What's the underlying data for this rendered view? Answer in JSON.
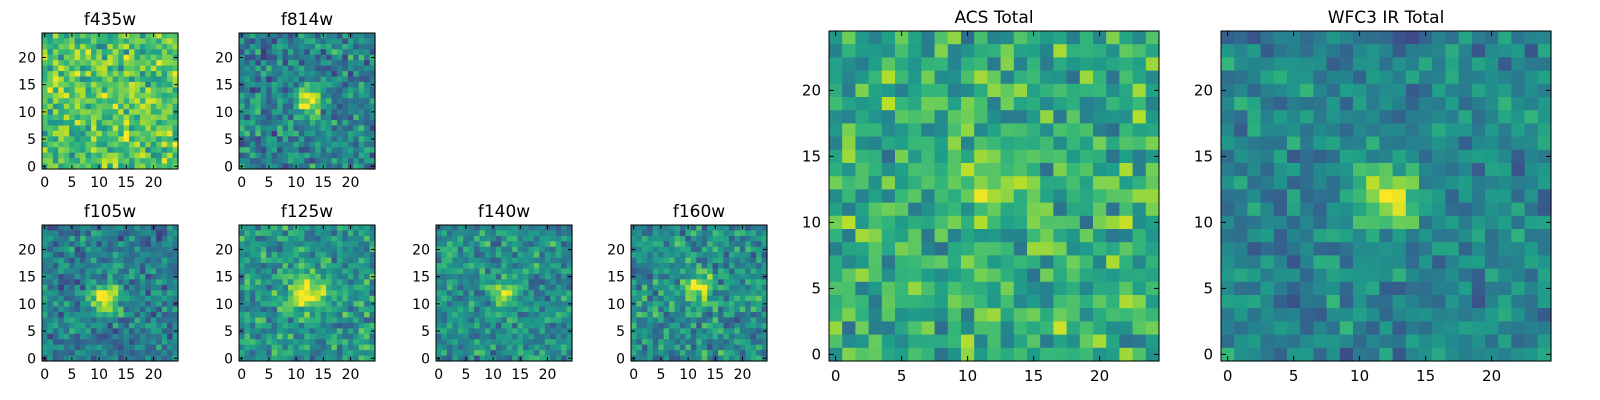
{
  "figure": {
    "background": "#ffffff"
  },
  "colormap": {
    "name": "viridis",
    "stops": [
      "#440154",
      "#482878",
      "#3e4989",
      "#31688e",
      "#26828e",
      "#1f9e89",
      "#35b779",
      "#6ece58",
      "#b5de2b",
      "#fde725"
    ]
  },
  "chart_data": [
    {
      "type": "heatmap",
      "title": "f435w",
      "xticks": [
        "0",
        "5",
        "10",
        "15",
        "20"
      ],
      "yticks": [
        "0",
        "5",
        "10",
        "15",
        "20"
      ],
      "xlim": [
        0,
        24
      ],
      "ylim": [
        0,
        24
      ],
      "grid": false,
      "source": {
        "x": 12,
        "y": 12,
        "amplitude": 0.0,
        "sigma": 2.0
      },
      "noise_mean": 0.72,
      "noise_amp": 0.22,
      "seed": 11
    },
    {
      "type": "heatmap",
      "title": "f814w",
      "xticks": [
        "0",
        "5",
        "10",
        "15",
        "20"
      ],
      "yticks": [
        "0",
        "5",
        "10",
        "15",
        "20"
      ],
      "xlim": [
        0,
        24
      ],
      "ylim": [
        0,
        24
      ],
      "grid": false,
      "source": {
        "x": 12,
        "y": 12,
        "amplitude": 0.55,
        "sigma": 1.6
      },
      "noise_mean": 0.45,
      "noise_amp": 0.22,
      "seed": 23
    },
    {
      "type": "heatmap",
      "title": "f105w",
      "xticks": [
        "0",
        "5",
        "10",
        "15",
        "20"
      ],
      "yticks": [
        "0",
        "5",
        "10",
        "15",
        "20"
      ],
      "xlim": [
        0,
        24
      ],
      "ylim": [
        0,
        24
      ],
      "grid": false,
      "source": {
        "x": 11,
        "y": 11,
        "amplitude": 0.55,
        "sigma": 2.2
      },
      "noise_mean": 0.42,
      "noise_amp": 0.2,
      "seed": 37
    },
    {
      "type": "heatmap",
      "title": "f125w",
      "xticks": [
        "0",
        "5",
        "10",
        "15",
        "20"
      ],
      "yticks": [
        "0",
        "5",
        "10",
        "15",
        "20"
      ],
      "xlim": [
        0,
        24
      ],
      "ylim": [
        0,
        24
      ],
      "grid": false,
      "source": {
        "x": 12,
        "y": 12,
        "amplitude": 0.45,
        "sigma": 2.4
      },
      "noise_mean": 0.52,
      "noise_amp": 0.2,
      "seed": 41
    },
    {
      "type": "heatmap",
      "title": "f140w",
      "xticks": [
        "0",
        "5",
        "10",
        "15",
        "20"
      ],
      "yticks": [
        "0",
        "5",
        "10",
        "15",
        "20"
      ],
      "xlim": [
        0,
        24
      ],
      "ylim": [
        0,
        24
      ],
      "grid": false,
      "source": {
        "x": 12,
        "y": 12,
        "amplitude": 0.45,
        "sigma": 1.5
      },
      "noise_mean": 0.5,
      "noise_amp": 0.2,
      "seed": 53
    },
    {
      "type": "heatmap",
      "title": "f160w",
      "xticks": [
        "0",
        "5",
        "10",
        "15",
        "20"
      ],
      "yticks": [
        "0",
        "5",
        "10",
        "15",
        "20"
      ],
      "xlim": [
        0,
        24
      ],
      "ylim": [
        0,
        24
      ],
      "grid": false,
      "source": {
        "x": 12,
        "y": 13,
        "amplitude": 0.45,
        "sigma": 1.8
      },
      "noise_mean": 0.5,
      "noise_amp": 0.2,
      "seed": 67
    },
    {
      "type": "heatmap",
      "title": "ACS Total",
      "xticks": [
        "0",
        "5",
        "10",
        "15",
        "20"
      ],
      "yticks": [
        "0",
        "5",
        "10",
        "15",
        "20"
      ],
      "xlim": [
        0,
        24
      ],
      "ylim": [
        0,
        24
      ],
      "grid": false,
      "source": {
        "x": 12,
        "y": 13,
        "amplitude": 0.35,
        "sigma": 1.4
      },
      "noise_mean": 0.62,
      "noise_amp": 0.22,
      "seed": 79
    },
    {
      "type": "heatmap",
      "title": "WFC3 IR Total",
      "xticks": [
        "0",
        "5",
        "10",
        "15",
        "20"
      ],
      "yticks": [
        "0",
        "5",
        "10",
        "15",
        "20"
      ],
      "xlim": [
        0,
        24
      ],
      "ylim": [
        0,
        24
      ],
      "grid": false,
      "source": {
        "x": 12,
        "y": 12,
        "amplitude": 0.55,
        "sigma": 1.6
      },
      "noise_mean": 0.45,
      "noise_amp": 0.16,
      "seed": 97
    }
  ]
}
